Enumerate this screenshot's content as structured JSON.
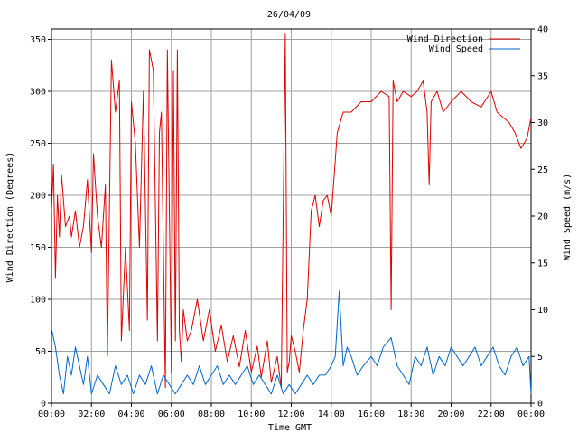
{
  "chart_data": {
    "type": "line",
    "title": "26/04/09",
    "xlabel": "Time GMT",
    "ylabel_left": "Wind Direction (Degrees)",
    "ylabel_right": "Wind Speed (m/s)",
    "x_ticks": [
      "00:00",
      "02:00",
      "04:00",
      "06:00",
      "08:00",
      "10:00",
      "12:00",
      "14:00",
      "16:00",
      "18:00",
      "20:00",
      "22:00",
      "00:00"
    ],
    "xlim_hours": [
      0,
      24
    ],
    "ylim_left": [
      0,
      360
    ],
    "yticks_left": [
      0,
      50,
      100,
      150,
      200,
      250,
      300,
      350
    ],
    "ylim_right": [
      0,
      40
    ],
    "yticks_right": [
      0,
      5,
      10,
      15,
      20,
      25,
      30,
      35,
      40
    ],
    "grid": true,
    "legend_position": "top-right",
    "series": [
      {
        "name": "Wind Direction",
        "axis": "left",
        "color": "#e00000",
        "x_hours": [
          0.0,
          0.1,
          0.2,
          0.3,
          0.4,
          0.5,
          0.7,
          0.9,
          1.0,
          1.2,
          1.4,
          1.6,
          1.8,
          2.0,
          2.1,
          2.3,
          2.5,
          2.7,
          2.8,
          3.0,
          3.2,
          3.4,
          3.5,
          3.7,
          3.9,
          4.0,
          4.2,
          4.4,
          4.6,
          4.8,
          4.9,
          5.1,
          5.3,
          5.4,
          5.5,
          5.7,
          5.8,
          6.0,
          6.1,
          6.2,
          6.3,
          6.4,
          6.5,
          6.6,
          6.8,
          7.0,
          7.3,
          7.6,
          7.9,
          8.2,
          8.5,
          8.8,
          9.1,
          9.4,
          9.7,
          10.0,
          10.3,
          10.5,
          10.8,
          11.0,
          11.3,
          11.5,
          11.7,
          11.8,
          11.9,
          12.0,
          12.2,
          12.4,
          12.6,
          12.8,
          13.0,
          13.2,
          13.4,
          13.6,
          13.8,
          14.0,
          14.3,
          14.6,
          15.0,
          15.5,
          16.0,
          16.5,
          16.9,
          17.0,
          17.1,
          17.3,
          17.6,
          18.0,
          18.3,
          18.6,
          18.8,
          18.9,
          19.0,
          19.3,
          19.6,
          20.0,
          20.5,
          21.0,
          21.5,
          22.0,
          22.3,
          22.6,
          22.9,
          23.2,
          23.5,
          23.8,
          24.0
        ],
        "values": [
          185,
          230,
          120,
          200,
          160,
          220,
          170,
          180,
          160,
          185,
          150,
          170,
          215,
          145,
          240,
          180,
          150,
          210,
          45,
          330,
          280,
          310,
          60,
          150,
          70,
          290,
          250,
          150,
          300,
          80,
          340,
          320,
          60,
          260,
          280,
          15,
          340,
          30,
          320,
          60,
          340,
          70,
          40,
          90,
          60,
          70,
          100,
          60,
          90,
          50,
          75,
          40,
          65,
          35,
          70,
          30,
          55,
          25,
          60,
          20,
          45,
          15,
          355,
          30,
          40,
          65,
          50,
          30,
          70,
          100,
          185,
          200,
          170,
          195,
          200,
          180,
          260,
          280,
          280,
          290,
          290,
          300,
          295,
          90,
          310,
          290,
          300,
          295,
          300,
          310,
          280,
          210,
          290,
          300,
          280,
          290,
          300,
          290,
          285,
          300,
          280,
          275,
          270,
          260,
          245,
          255,
          275
        ]
      },
      {
        "name": "Wind Speed",
        "axis": "right",
        "color": "#0066cc",
        "x_hours": [
          0.0,
          0.2,
          0.4,
          0.6,
          0.8,
          1.0,
          1.2,
          1.4,
          1.6,
          1.8,
          2.0,
          2.3,
          2.6,
          2.9,
          3.2,
          3.5,
          3.8,
          4.1,
          4.4,
          4.7,
          5.0,
          5.3,
          5.6,
          5.9,
          6.2,
          6.5,
          6.8,
          7.1,
          7.4,
          7.7,
          8.0,
          8.3,
          8.6,
          8.9,
          9.2,
          9.5,
          9.8,
          10.1,
          10.4,
          10.7,
          11.0,
          11.3,
          11.6,
          11.9,
          12.2,
          12.5,
          12.8,
          13.1,
          13.4,
          13.7,
          14.0,
          14.2,
          14.4,
          14.6,
          14.8,
          15.0,
          15.3,
          15.6,
          16.0,
          16.3,
          16.6,
          17.0,
          17.3,
          17.6,
          17.9,
          18.2,
          18.5,
          18.8,
          19.1,
          19.4,
          19.7,
          20.0,
          20.3,
          20.6,
          20.9,
          21.2,
          21.5,
          21.8,
          22.1,
          22.4,
          22.7,
          23.0,
          23.3,
          23.6,
          23.9,
          24.0
        ],
        "values": [
          8,
          6,
          3,
          1,
          5,
          3,
          6,
          4,
          2,
          5,
          1,
          3,
          2,
          1,
          4,
          2,
          3,
          1,
          3,
          2,
          4,
          1,
          3,
          2,
          1,
          2,
          3,
          2,
          4,
          2,
          3,
          4,
          2,
          3,
          2,
          3,
          4,
          2,
          3,
          2,
          1,
          3,
          1,
          2,
          1,
          2,
          3,
          2,
          3,
          3,
          4,
          5,
          12,
          4,
          6,
          5,
          3,
          4,
          5,
          4,
          6,
          7,
          4,
          3,
          2,
          5,
          4,
          6,
          3,
          5,
          4,
          6,
          5,
          4,
          5,
          6,
          4,
          5,
          6,
          4,
          3,
          5,
          6,
          4,
          5,
          1
        ]
      }
    ]
  }
}
